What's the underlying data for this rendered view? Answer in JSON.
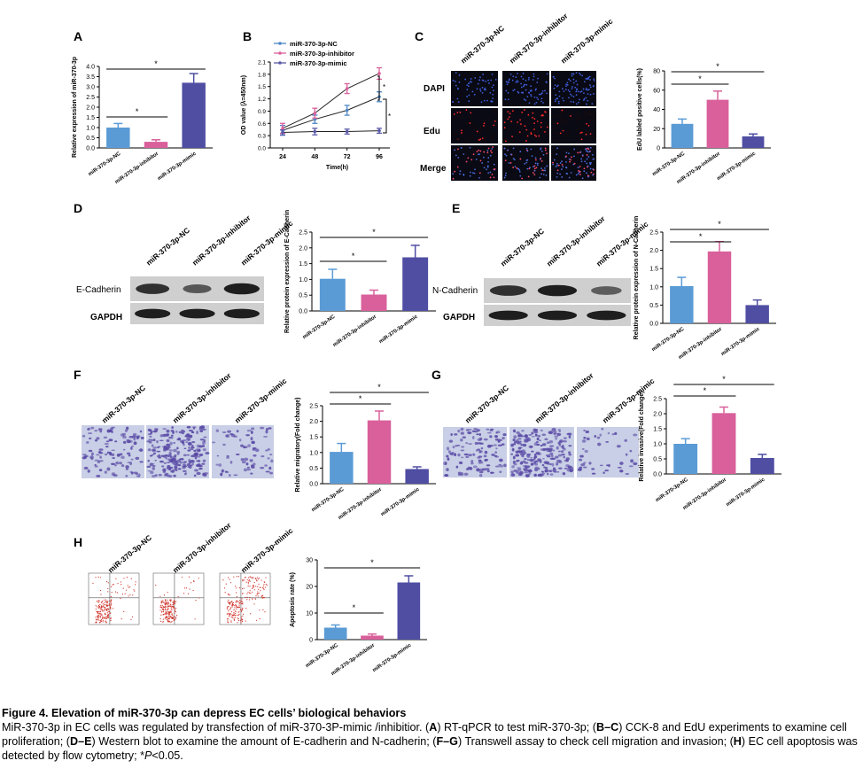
{
  "colors": {
    "nc": "#5b9bd5",
    "inhibitor": "#d9609b",
    "mimic": "#4f4ea3",
    "cck_nc": "#4f86c6",
    "cck_inhibitor": "#d9609b",
    "cck_mimic": "#5a5aa8",
    "blot_bg": "#cfcfcf",
    "band": "#1e1e1e",
    "transwell_bg": "#c9cfe6",
    "cell": "#5a4ba6",
    "flow_dot": "#d0342c"
  },
  "group_labels": [
    "miR-370-3p-NC",
    "miR-370-3p-inhibitor",
    "miR-370-3p-mimic"
  ],
  "sig": "*",
  "panels": {
    "A": {
      "letter": "A",
      "ylabel": "Relative expression of miR-370-3p",
      "ticks": [
        "0.0",
        "0.5",
        "1.0",
        "1.5",
        "2.0",
        "2.5",
        "3.0",
        "3.5",
        "4.0"
      ]
    },
    "B": {
      "letter": "B",
      "legend": [
        "miR-370-3p-NC",
        "miR-370-3p-inhibitor",
        "miR-370-3p-mimic"
      ],
      "ylabel": "OD value (λ=450nm)",
      "xlabel": "Time(h)",
      "xticks": [
        "24",
        "48",
        "72",
        "96"
      ],
      "yticks": [
        "0.0",
        "0.3",
        "0.6",
        "0.9",
        "1.2",
        "1.5",
        "1.8",
        "2.1"
      ]
    },
    "C": {
      "letter": "C",
      "rows": [
        "DAPI",
        "Edu",
        "Merge"
      ],
      "ylabel": "EdU labled positive cells(%)",
      "ticks": [
        "0",
        "20",
        "40",
        "60",
        "80"
      ]
    },
    "D": {
      "letter": "D",
      "bands": [
        "E-Cadherin",
        "GAPDH"
      ],
      "ylabel": "Relative protein expression of E-Cadherin",
      "ticks": [
        "0.0",
        "0.5",
        "1.0",
        "1.5",
        "2.0",
        "2.5"
      ]
    },
    "E": {
      "letter": "E",
      "bands": [
        "N-Cadherin",
        "GAPDH"
      ],
      "ylabel": "Relative protein expression of N-Cadherin",
      "ticks": [
        "0.0",
        "0.5",
        "1.0",
        "1.5",
        "2.0",
        "2.5"
      ]
    },
    "F": {
      "letter": "F",
      "ylabel": "Relative migratory(Fold change)",
      "ticks": [
        "0.0",
        "0.5",
        "1.0",
        "1.5",
        "2.0",
        "2.5"
      ]
    },
    "G": {
      "letter": "G",
      "ylabel": "Relative invasive(Fold change)",
      "ticks": [
        "0.0",
        "0.5",
        "1.0",
        "1.5",
        "2.0",
        "2.5"
      ]
    },
    "H": {
      "letter": "H",
      "ylabel": "Apoptosis rate (%)",
      "ticks": [
        "0",
        "10",
        "20",
        "30"
      ]
    }
  },
  "chart_data": [
    {
      "panel": "A",
      "type": "bar",
      "categories": [
        "miR-370-3p-NC",
        "miR-370-3p-inhibitor",
        "miR-370-3p-mimic"
      ],
      "values": [
        1.0,
        0.3,
        3.2
      ],
      "errors": [
        0.2,
        0.1,
        0.45
      ],
      "ylabel": "Relative expression of miR-370-3p",
      "ylim": [
        0,
        4
      ],
      "significance": [
        {
          "from": 0,
          "to": 1,
          "label": "*"
        },
        {
          "from": 0,
          "to": 2,
          "label": "*"
        }
      ]
    },
    {
      "panel": "B",
      "type": "line",
      "x": [
        24,
        48,
        72,
        96
      ],
      "xlabel": "Time(h)",
      "ylabel": "OD value (λ=450nm)",
      "ylim": [
        0,
        2.1
      ],
      "series": [
        {
          "name": "miR-370-3p-NC",
          "values": [
            0.43,
            0.7,
            0.92,
            1.25
          ],
          "errors": [
            0.12,
            0.1,
            0.12,
            0.12
          ]
        },
        {
          "name": "miR-370-3p-inhibitor",
          "values": [
            0.48,
            0.85,
            1.45,
            1.82
          ],
          "errors": [
            0.12,
            0.12,
            0.12,
            0.14
          ]
        },
        {
          "name": "miR-370-3p-mimic",
          "values": [
            0.38,
            0.4,
            0.4,
            0.42
          ],
          "errors": [
            0.06,
            0.08,
            0.06,
            0.06
          ]
        }
      ],
      "significance": [
        {
          "label": "*"
        },
        {
          "label": "*"
        }
      ]
    },
    {
      "panel": "C",
      "type": "bar",
      "categories": [
        "miR-370-3p-NC",
        "miR-370-3p-inhibitor",
        "miR-370-3p-mimic"
      ],
      "values": [
        25,
        50,
        12
      ],
      "errors": [
        5,
        9,
        2.5
      ],
      "ylabel": "EdU labled positive cells(%)",
      "ylim": [
        0,
        80
      ],
      "significance": [
        {
          "from": 0,
          "to": 1,
          "label": "*"
        },
        {
          "from": 0,
          "to": 2,
          "label": "*"
        }
      ]
    },
    {
      "panel": "D",
      "type": "bar",
      "categories": [
        "miR-370-3p-NC",
        "miR-370-3p-inhibitor",
        "miR-370-3p-mimic"
      ],
      "values": [
        1.02,
        0.52,
        1.7
      ],
      "errors": [
        0.3,
        0.14,
        0.38
      ],
      "ylabel": "Relative protein expression of E-Cadherin",
      "ylim": [
        0,
        2.5
      ],
      "significance": [
        {
          "from": 0,
          "to": 1,
          "label": "*"
        },
        {
          "from": 0,
          "to": 2,
          "label": "*"
        }
      ]
    },
    {
      "panel": "E",
      "type": "bar",
      "categories": [
        "miR-370-3p-NC",
        "miR-370-3p-inhibitor",
        "miR-370-3p-mimic"
      ],
      "values": [
        1.02,
        1.97,
        0.5
      ],
      "errors": [
        0.24,
        0.27,
        0.14
      ],
      "ylabel": "Relative protein expression of N-Cadherin",
      "ylim": [
        0,
        2.5
      ],
      "significance": [
        {
          "from": 0,
          "to": 1,
          "label": "*"
        },
        {
          "from": 0,
          "to": 2,
          "label": "*"
        }
      ]
    },
    {
      "panel": "F",
      "type": "bar",
      "categories": [
        "miR-370-3p-NC",
        "miR-370-3p-inhibitor",
        "miR-370-3p-mimic"
      ],
      "values": [
        1.02,
        2.03,
        0.47
      ],
      "errors": [
        0.27,
        0.3,
        0.07
      ],
      "ylabel": "Relative migratory(Fold change)",
      "ylim": [
        0,
        2.5
      ],
      "significance": [
        {
          "from": 0,
          "to": 1,
          "label": "*"
        },
        {
          "from": 0,
          "to": 2,
          "label": "*"
        }
      ]
    },
    {
      "panel": "G",
      "type": "bar",
      "categories": [
        "miR-370-3p-NC",
        "miR-370-3p-inhibitor",
        "miR-370-3p-mimic"
      ],
      "values": [
        1.0,
        2.02,
        0.53
      ],
      "errors": [
        0.17,
        0.2,
        0.12
      ],
      "ylabel": "Relative invasive(Fold change)",
      "ylim": [
        0,
        2.5
      ],
      "significance": [
        {
          "from": 0,
          "to": 1,
          "label": "*"
        },
        {
          "from": 0,
          "to": 2,
          "label": "*"
        }
      ]
    },
    {
      "panel": "H",
      "type": "bar",
      "categories": [
        "miR-370-3p-NC",
        "miR-370-3p-inhibitor",
        "miR-370-3p-mimic"
      ],
      "values": [
        4.5,
        1.5,
        21.5
      ],
      "errors": [
        1.0,
        0.6,
        2.5
      ],
      "ylabel": "Apoptosis rate (%)",
      "ylim": [
        0,
        30
      ],
      "significance": [
        {
          "from": 0,
          "to": 1,
          "label": "*"
        },
        {
          "from": 0,
          "to": 2,
          "label": "*"
        }
      ]
    }
  ],
  "caption": {
    "title": "Figure 4. Elevation of miR-370-3p can depress EC cells’ biological behaviors",
    "segments": [
      {
        "t": "MiR-370-3p in EC cells was regulated by transfection of miR-370-3P-mimic /inhibitior. (",
        "b": false
      },
      {
        "t": "A",
        "b": true
      },
      {
        "t": ") RT-qPCR to test miR-370-3p; (",
        "b": false
      },
      {
        "t": "B–C",
        "b": true
      },
      {
        "t": ") CCK-8 and EdU experiments to examine cell proliferation; (",
        "b": false
      },
      {
        "t": "D–E",
        "b": true
      },
      {
        "t": ") Western blot to examine the amount of E-cadherin and N-cadherin; (",
        "b": false
      },
      {
        "t": "F–G",
        "b": true
      },
      {
        "t": ") Transwell assay to check cell migration and invasion; (",
        "b": false
      },
      {
        "t": "H",
        "b": true
      },
      {
        "t": ") EC cell apoptosis was detected by flow cytometry; *",
        "b": false
      },
      {
        "t": "P",
        "i": true
      },
      {
        "t": "<0.05.",
        "b": false
      }
    ]
  }
}
